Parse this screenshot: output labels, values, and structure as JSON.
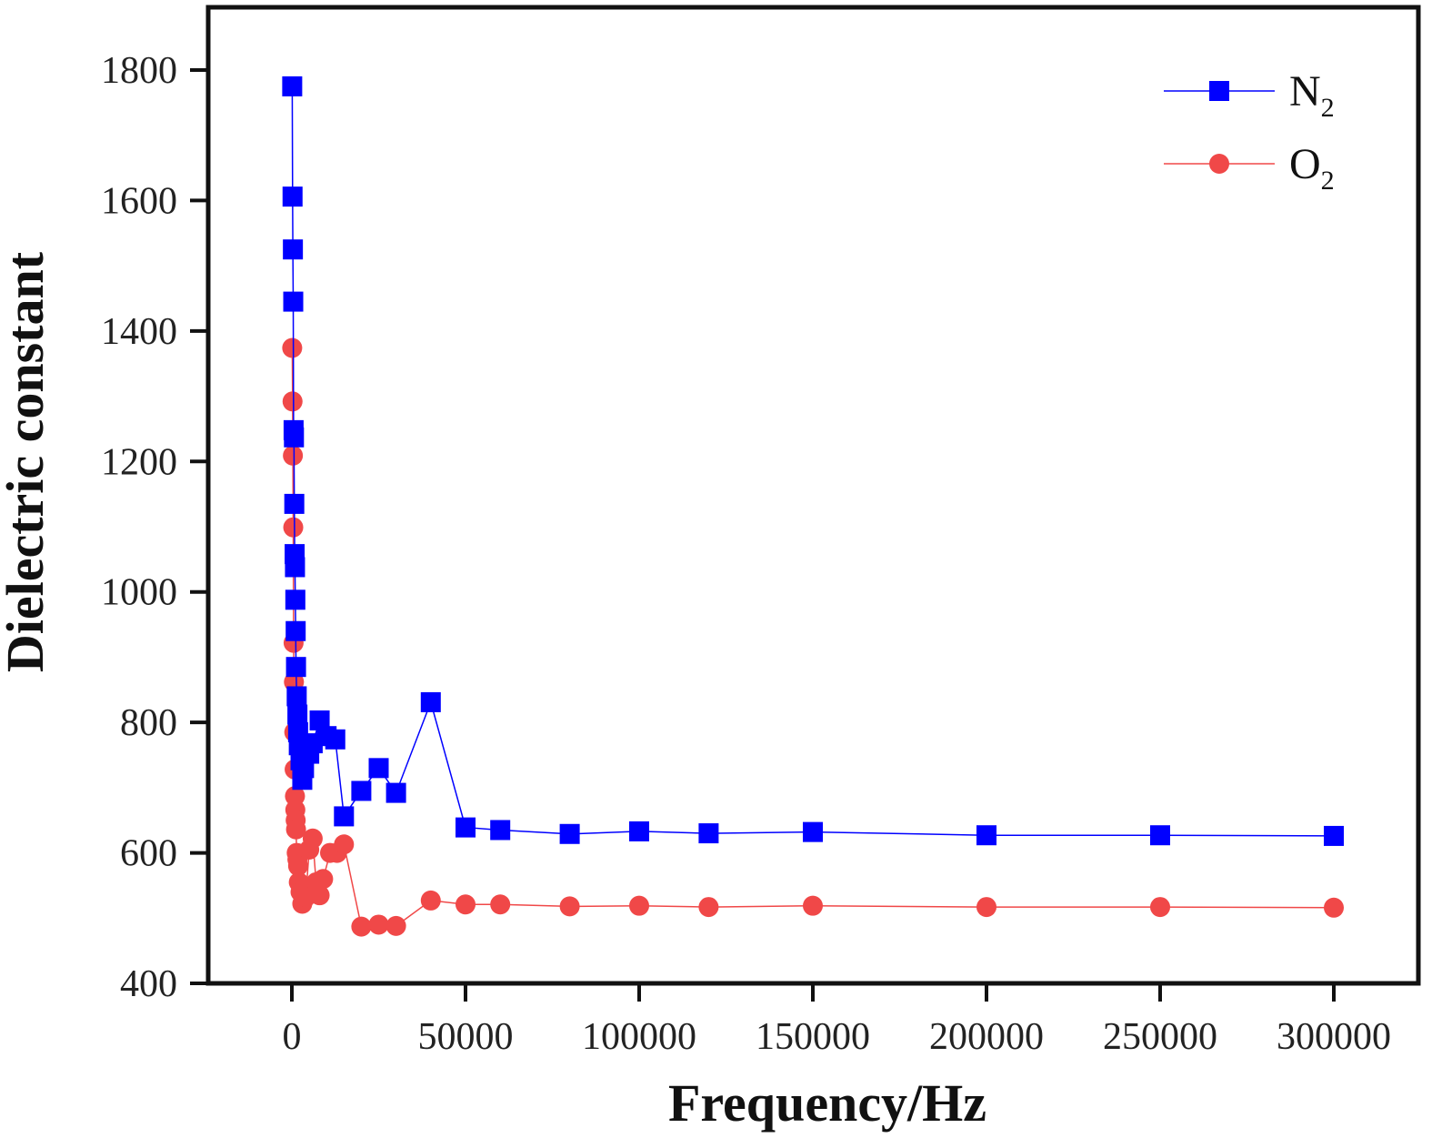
{
  "chart_data": {
    "type": "line",
    "xlabel": "Frequency/Hz",
    "ylabel": "Dielectric constant",
    "xlim": [
      -25000,
      320000
    ],
    "ylim": [
      400,
      1900
    ],
    "xticks": [
      0,
      50000,
      100000,
      150000,
      200000,
      250000,
      300000
    ],
    "yticks": [
      400,
      600,
      800,
      1000,
      1200,
      1400,
      1600,
      1800
    ],
    "xtick_labels": [
      "0",
      "50000",
      "100000",
      "150000",
      "200000",
      "250000",
      "300000"
    ],
    "ytick_labels": [
      "400",
      "600",
      "800",
      "1000",
      "1200",
      "1400",
      "1600",
      "1800"
    ],
    "grid": false,
    "legend_position": "top-right",
    "series": [
      {
        "name": "N",
        "name_subscript": "2",
        "color": "#0000ff",
        "marker": "square",
        "points": [
          [
            100,
            1775
          ],
          [
            200,
            1606
          ],
          [
            300,
            1525
          ],
          [
            400,
            1445
          ],
          [
            500,
            1248
          ],
          [
            600,
            1237
          ],
          [
            700,
            1135
          ],
          [
            800,
            1058
          ],
          [
            900,
            1038
          ],
          [
            1000,
            988
          ],
          [
            1100,
            940
          ],
          [
            1200,
            885
          ],
          [
            1400,
            840
          ],
          [
            1600,
            812
          ],
          [
            1800,
            785
          ],
          [
            2000,
            765
          ],
          [
            2500,
            742
          ],
          [
            3000,
            712
          ],
          [
            3500,
            730
          ],
          [
            4000,
            760
          ],
          [
            5000,
            752
          ],
          [
            6000,
            768
          ],
          [
            8000,
            803
          ],
          [
            10000,
            779
          ],
          [
            12500,
            774
          ],
          [
            15000,
            656
          ],
          [
            20000,
            695
          ],
          [
            25000,
            730
          ],
          [
            30000,
            692
          ],
          [
            40000,
            831
          ],
          [
            50000,
            639
          ],
          [
            60000,
            635
          ],
          [
            80000,
            629
          ],
          [
            100000,
            633
          ],
          [
            120000,
            630
          ],
          [
            150000,
            632
          ],
          [
            200000,
            627
          ],
          [
            250000,
            627
          ],
          [
            300000,
            626
          ]
        ]
      },
      {
        "name": "O",
        "name_subscript": "2",
        "color": "#f04848",
        "marker": "circle",
        "points": [
          [
            100,
            1374
          ],
          [
            200,
            1292
          ],
          [
            300,
            1209
          ],
          [
            400,
            1099
          ],
          [
            500,
            922
          ],
          [
            600,
            862
          ],
          [
            700,
            785
          ],
          [
            800,
            728
          ],
          [
            900,
            687
          ],
          [
            1000,
            666
          ],
          [
            1100,
            650
          ],
          [
            1200,
            636
          ],
          [
            1400,
            600
          ],
          [
            1600,
            590
          ],
          [
            1800,
            580
          ],
          [
            2000,
            555
          ],
          [
            2500,
            540
          ],
          [
            3000,
            522
          ],
          [
            3500,
            545
          ],
          [
            4000,
            532
          ],
          [
            5000,
            605
          ],
          [
            6000,
            622
          ],
          [
            7000,
            555
          ],
          [
            8000,
            535
          ],
          [
            9000,
            560
          ],
          [
            11000,
            600
          ],
          [
            13000,
            600
          ],
          [
            15000,
            613
          ],
          [
            20000,
            487
          ],
          [
            25000,
            490
          ],
          [
            30000,
            488
          ],
          [
            40000,
            527
          ],
          [
            50000,
            521
          ],
          [
            60000,
            521
          ],
          [
            80000,
            518
          ],
          [
            100000,
            519
          ],
          [
            120000,
            517
          ],
          [
            150000,
            519
          ],
          [
            200000,
            517
          ],
          [
            250000,
            517
          ],
          [
            300000,
            516
          ]
        ]
      }
    ]
  }
}
